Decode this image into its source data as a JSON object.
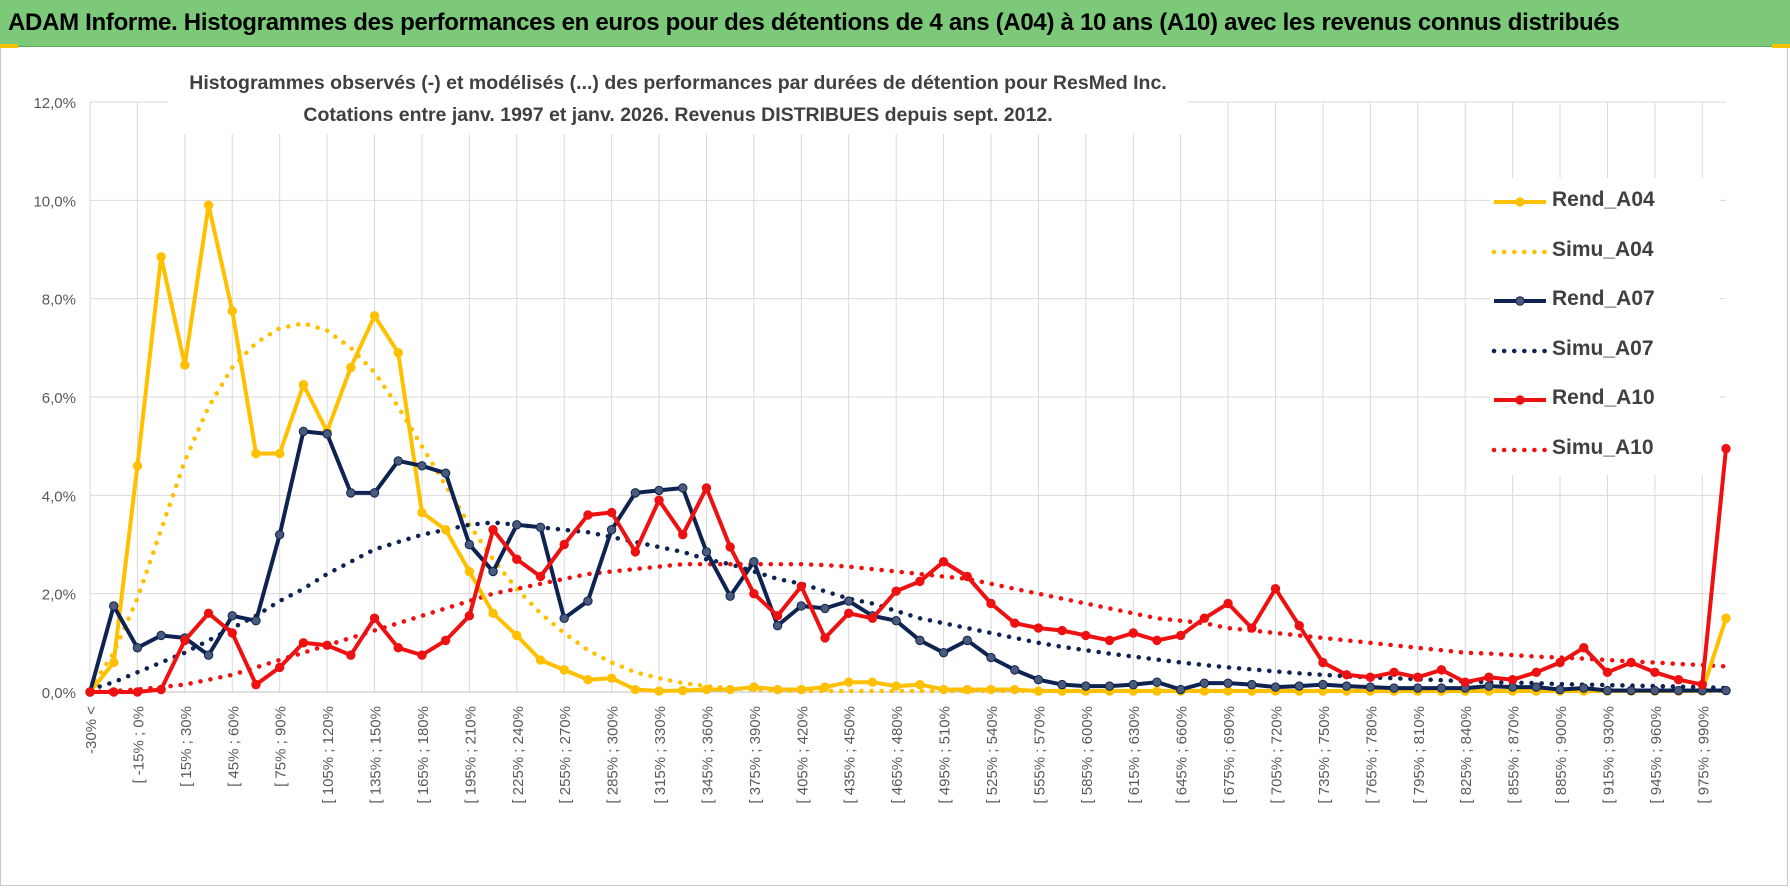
{
  "banner": {
    "title": "ADAM Informe. Histogrammes des performances en euros pour des détentions de 4 ans (A04) à 10 ans (A10) avec les revenus connus distribués"
  },
  "chart_data": {
    "type": "line",
    "title_line1": "Histogrammes observés (-) et modélisés (...) des performances par durées de détention pour ResMed Inc.",
    "title_line2": "Cotations entre janv. 1997 et janv. 2026. Revenus DISTRIBUES depuis sept. 2012.",
    "ylim": [
      0,
      12
    ],
    "y_ticks": [
      "0,0%",
      "2,0%",
      "4,0%",
      "6,0%",
      "8,0%",
      "10,0%",
      "12,0%"
    ],
    "x_tick_labels": [
      "-30% <",
      "[ -15% ; 0%",
      "[ 15% ; 30%",
      "[ 45% ; 60%",
      "[ 75% ; 90%",
      "[ 105% ; 120%",
      "[ 135% ; 150%",
      "[ 165% ; 180%",
      "[ 195% ; 210%",
      "[ 225% ; 240%",
      "[ 255% ; 270%",
      "[ 285% ; 300%",
      "[ 315% ; 330%",
      "[ 345% ; 360%",
      "[ 375% ; 390%",
      "[ 405% ; 420%",
      "[ 435% ; 450%",
      "[ 465% ; 480%",
      "[ 495% ; 510%",
      "[ 525% ; 540%",
      "[ 555% ; 570%",
      "[ 585% ; 600%",
      "[ 615% ; 630%",
      "[ 645% ; 660%",
      "[ 675% ; 690%",
      "[ 705% ; 720%",
      "[ 735% ; 750%",
      "[ 765% ; 780%",
      "[ 795% ; 810%",
      "[ 825% ; 840%",
      "[ 855% ; 870%",
      "[ 885% ; 900%",
      "[ 915% ; 930%",
      "[ 945% ; 960%",
      "[ 975% ; 990%"
    ],
    "num_categories": 70,
    "series": [
      {
        "name": "Rend_A04",
        "style": "solid",
        "color": "#FFC000",
        "values": [
          0,
          0.6,
          4.6,
          8.85,
          6.65,
          9.9,
          7.75,
          4.85,
          4.85,
          6.25,
          5.3,
          6.6,
          7.65,
          6.9,
          3.65,
          3.3,
          2.45,
          1.6,
          1.15,
          0.65,
          0.45,
          0.25,
          0.28,
          0.05,
          0.02,
          0.03,
          0.05,
          0.05,
          0.1,
          0.05,
          0.05,
          0.1,
          0.2,
          0.2,
          0.12,
          0.15,
          0.05,
          0.05,
          0.05,
          0.05,
          0.02,
          0.02,
          0.02,
          0.02,
          0.02,
          0.02,
          0.02,
          0.02,
          0.02,
          0.02,
          0.02,
          0.02,
          0.02,
          0.02,
          0.02,
          0.02,
          0.02,
          0.02,
          0.02,
          0.02,
          0.02,
          0.02,
          0.02,
          0.02,
          0.02,
          0.02,
          0.02,
          0.02,
          0.02,
          1.5
        ]
      },
      {
        "name": "Simu_A04",
        "style": "dotted",
        "color": "#FFC000",
        "values": [
          0.05,
          0.8,
          1.9,
          3.3,
          4.7,
          5.8,
          6.6,
          7.1,
          7.4,
          7.5,
          7.35,
          7.0,
          6.5,
          5.8,
          5.0,
          4.2,
          3.4,
          2.7,
          2.1,
          1.6,
          1.2,
          0.85,
          0.6,
          0.4,
          0.28,
          0.18,
          0.12,
          0.08,
          0.05,
          0.03,
          0.02,
          0.02,
          0.02,
          0.02,
          0.02,
          0.02,
          0.02,
          0.02,
          0.02,
          0.02,
          0.02,
          0.02,
          0.02,
          0.02,
          0.02,
          0.02,
          0.02,
          0.02,
          0.02,
          0.02,
          0.02,
          0.02,
          0.02,
          0.02,
          0.02,
          0.02,
          0.02,
          0.02,
          0.02,
          0.02,
          0.02,
          0.02,
          0.02,
          0.02,
          0.02,
          0.02,
          0.02,
          0.02,
          0.02,
          0.02
        ]
      },
      {
        "name": "Rend_A07",
        "style": "solid",
        "color": "#0E2352",
        "values": [
          0,
          1.75,
          0.9,
          1.15,
          1.1,
          0.75,
          1.55,
          1.45,
          3.2,
          5.3,
          5.25,
          4.05,
          4.05,
          4.7,
          4.6,
          4.45,
          3.0,
          2.45,
          3.4,
          3.35,
          1.5,
          1.85,
          3.3,
          4.05,
          4.1,
          4.15,
          2.85,
          1.95,
          2.65,
          1.35,
          1.75,
          1.7,
          1.85,
          1.55,
          1.45,
          1.05,
          0.8,
          1.05,
          0.7,
          0.45,
          0.25,
          0.15,
          0.12,
          0.12,
          0.15,
          0.2,
          0.05,
          0.18,
          0.18,
          0.15,
          0.1,
          0.12,
          0.15,
          0.12,
          0.1,
          0.08,
          0.08,
          0.08,
          0.08,
          0.12,
          0.1,
          0.1,
          0.05,
          0.08,
          0.03,
          0.03,
          0.03,
          0.03,
          0.03,
          0.03
        ]
      },
      {
        "name": "Simu_A07",
        "style": "dotted",
        "color": "#0E2352",
        "values": [
          0.05,
          0.2,
          0.4,
          0.6,
          0.8,
          1.05,
          1.3,
          1.55,
          1.85,
          2.1,
          2.4,
          2.65,
          2.9,
          3.05,
          3.2,
          3.3,
          3.4,
          3.45,
          3.4,
          3.35,
          3.3,
          3.25,
          3.15,
          3.05,
          2.95,
          2.85,
          2.7,
          2.6,
          2.45,
          2.3,
          2.2,
          2.05,
          1.9,
          1.8,
          1.65,
          1.5,
          1.4,
          1.3,
          1.2,
          1.1,
          1.0,
          0.92,
          0.85,
          0.78,
          0.72,
          0.66,
          0.6,
          0.55,
          0.5,
          0.46,
          0.42,
          0.38,
          0.35,
          0.32,
          0.3,
          0.28,
          0.26,
          0.24,
          0.22,
          0.2,
          0.19,
          0.18,
          0.16,
          0.15,
          0.14,
          0.13,
          0.12,
          0.11,
          0.1,
          0.08
        ]
      },
      {
        "name": "Rend_A10",
        "style": "solid",
        "color": "#EE1111",
        "values": [
          0,
          0,
          0,
          0.05,
          1.05,
          1.6,
          1.2,
          0.15,
          0.5,
          1.0,
          0.95,
          0.75,
          1.5,
          0.9,
          0.75,
          1.05,
          1.55,
          3.3,
          2.7,
          2.35,
          3.0,
          3.6,
          3.65,
          2.85,
          3.9,
          3.2,
          4.15,
          2.95,
          2.0,
          1.55,
          2.15,
          1.1,
          1.6,
          1.5,
          2.05,
          2.25,
          2.65,
          2.35,
          1.8,
          1.4,
          1.3,
          1.25,
          1.15,
          1.05,
          1.2,
          1.05,
          1.15,
          1.5,
          1.8,
          1.3,
          2.1,
          1.35,
          0.6,
          0.35,
          0.3,
          0.4,
          0.3,
          0.45,
          0.2,
          0.3,
          0.25,
          0.4,
          0.6,
          0.9,
          0.4,
          0.6,
          0.4,
          0.25,
          0.15,
          4.95
        ]
      },
      {
        "name": "Simu_A10",
        "style": "dotted",
        "color": "#EE1111",
        "values": [
          0,
          0.02,
          0.05,
          0.1,
          0.15,
          0.25,
          0.35,
          0.5,
          0.65,
          0.8,
          0.95,
          1.1,
          1.25,
          1.4,
          1.55,
          1.7,
          1.85,
          2.0,
          2.1,
          2.2,
          2.3,
          2.4,
          2.45,
          2.5,
          2.55,
          2.6,
          2.6,
          2.6,
          2.6,
          2.6,
          2.6,
          2.58,
          2.55,
          2.5,
          2.45,
          2.4,
          2.35,
          2.3,
          2.2,
          2.1,
          2.0,
          1.9,
          1.8,
          1.7,
          1.6,
          1.5,
          1.45,
          1.4,
          1.3,
          1.25,
          1.2,
          1.15,
          1.1,
          1.05,
          1.0,
          0.95,
          0.9,
          0.85,
          0.8,
          0.78,
          0.75,
          0.72,
          0.7,
          0.68,
          0.65,
          0.62,
          0.6,
          0.57,
          0.55,
          0.52
        ]
      }
    ],
    "legend": [
      "Rend_A04",
      "Simu_A04",
      "Rend_A07",
      "Simu_A07",
      "Rend_A10",
      "Simu_A10"
    ],
    "legend_position": "right",
    "grid": true
  }
}
